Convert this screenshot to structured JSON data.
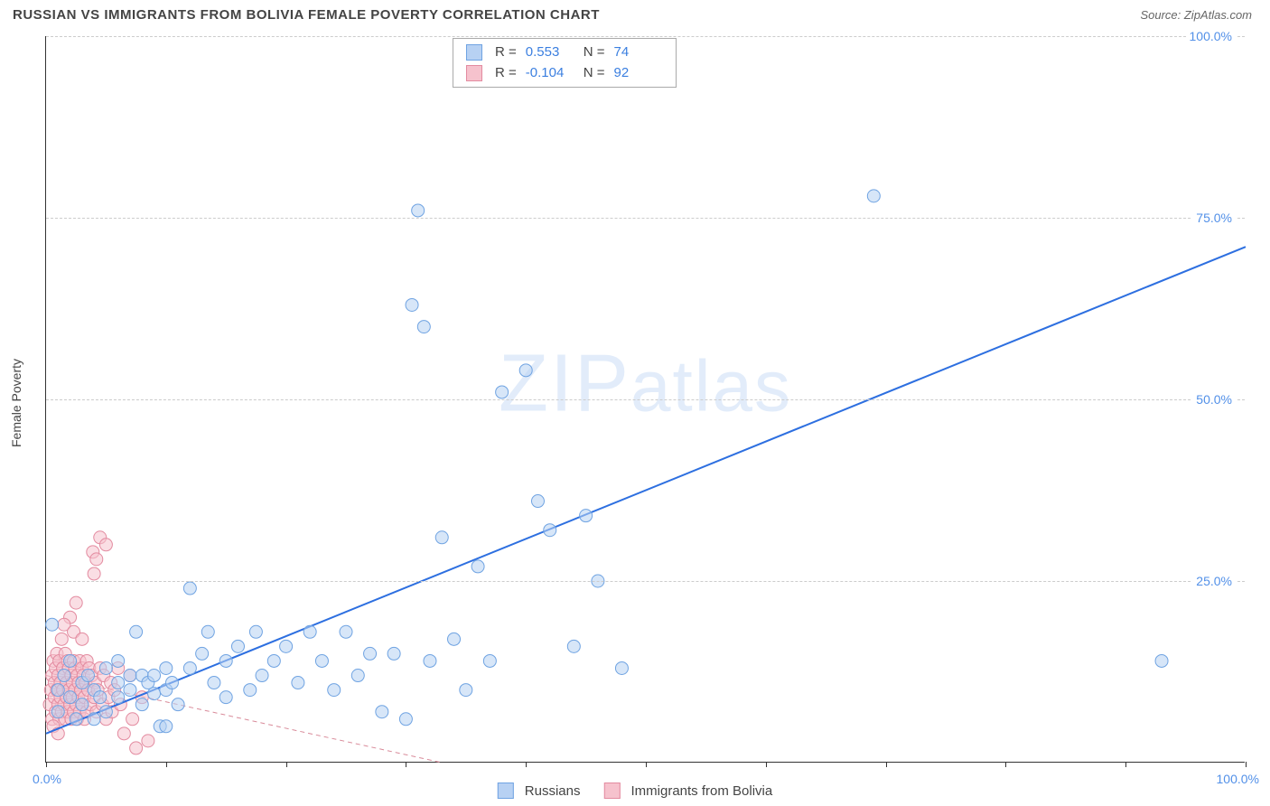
{
  "title": "RUSSIAN VS IMMIGRANTS FROM BOLIVIA FEMALE POVERTY CORRELATION CHART",
  "source": "Source: ZipAtlas.com",
  "watermark": "ZIPatlas",
  "yAxisTitle": "Female Poverty",
  "chart": {
    "type": "scatter",
    "xlim": [
      0,
      100
    ],
    "ylim": [
      0,
      100
    ],
    "xticks": [
      0,
      10,
      20,
      30,
      40,
      50,
      60,
      70,
      80,
      90,
      100
    ],
    "yticks": [
      25,
      50,
      75,
      100
    ],
    "xtick_labels_shown": {
      "0": "0.0%",
      "100": "100.0%"
    },
    "ytick_labels": [
      "25.0%",
      "50.0%",
      "75.0%",
      "100.0%"
    ],
    "grid_color": "#cccccc",
    "axis_color": "#333333",
    "tick_label_color": "#5290e8",
    "background_color": "#ffffff",
    "marker_radius": 7,
    "marker_stroke_width": 1,
    "series": [
      {
        "name": "Russians",
        "fill": "#b7d1f3",
        "stroke": "#6fa3e2",
        "fill_opacity": 0.55,
        "r_value": "0.553",
        "n_value": "74",
        "trend": {
          "x1": 0,
          "y1": 4,
          "x2": 100,
          "y2": 71,
          "stroke": "#2d6fe0",
          "width": 2,
          "dash": "none"
        },
        "points": [
          [
            0.5,
            19
          ],
          [
            1,
            10
          ],
          [
            1,
            7
          ],
          [
            1.5,
            12
          ],
          [
            2,
            9
          ],
          [
            2,
            14
          ],
          [
            2.5,
            6
          ],
          [
            3,
            11
          ],
          [
            3,
            8
          ],
          [
            3.5,
            12
          ],
          [
            4,
            10
          ],
          [
            4.5,
            9
          ],
          [
            5,
            13
          ],
          [
            5,
            7
          ],
          [
            6,
            11
          ],
          [
            6,
            9
          ],
          [
            7,
            12
          ],
          [
            7,
            10
          ],
          [
            7.5,
            18
          ],
          [
            8,
            8
          ],
          [
            8,
            12
          ],
          [
            8.5,
            11
          ],
          [
            9,
            9.5
          ],
          [
            9,
            12
          ],
          [
            9.5,
            5
          ],
          [
            10,
            10
          ],
          [
            10,
            13
          ],
          [
            10.5,
            11
          ],
          [
            11,
            8
          ],
          [
            12,
            24
          ],
          [
            12,
            13
          ],
          [
            13,
            15
          ],
          [
            13.5,
            18
          ],
          [
            14,
            11
          ],
          [
            15,
            14
          ],
          [
            15,
            9
          ],
          [
            16,
            16
          ],
          [
            17,
            10
          ],
          [
            17.5,
            18
          ],
          [
            18,
            12
          ],
          [
            19,
            14
          ],
          [
            20,
            16
          ],
          [
            21,
            11
          ],
          [
            22,
            18
          ],
          [
            23,
            14
          ],
          [
            24,
            10
          ],
          [
            25,
            18
          ],
          [
            26,
            12
          ],
          [
            27,
            15
          ],
          [
            28,
            7
          ],
          [
            29,
            15
          ],
          [
            30,
            6
          ],
          [
            30.5,
            63
          ],
          [
            31,
            76
          ],
          [
            31.5,
            60
          ],
          [
            32,
            14
          ],
          [
            33,
            31
          ],
          [
            34,
            17
          ],
          [
            35,
            10
          ],
          [
            36,
            27
          ],
          [
            37,
            14
          ],
          [
            38,
            51
          ],
          [
            40,
            54
          ],
          [
            41,
            36
          ],
          [
            42,
            32
          ],
          [
            44,
            16
          ],
          [
            45,
            34
          ],
          [
            46,
            25
          ],
          [
            48,
            13
          ],
          [
            69,
            78
          ],
          [
            93,
            14
          ],
          [
            10,
            5
          ],
          [
            6,
            14
          ],
          [
            4,
            6
          ]
        ]
      },
      {
        "name": "Immigrants from Bolivia",
        "fill": "#f6c2cd",
        "stroke": "#e38ba0",
        "fill_opacity": 0.55,
        "r_value": "-0.104",
        "n_value": "92",
        "trend": {
          "x1": 0,
          "y1": 12,
          "x2": 33,
          "y2": 0,
          "stroke": "#d98b9a",
          "width": 1,
          "dash": "5,4"
        },
        "points": [
          [
            0.3,
            8
          ],
          [
            0.4,
            10
          ],
          [
            0.5,
            12
          ],
          [
            0.5,
            6
          ],
          [
            0.6,
            14
          ],
          [
            0.7,
            9
          ],
          [
            0.7,
            11
          ],
          [
            0.8,
            13
          ],
          [
            0.8,
            7
          ],
          [
            0.9,
            10
          ],
          [
            0.9,
            15
          ],
          [
            1.0,
            8
          ],
          [
            1.0,
            12
          ],
          [
            1.1,
            6
          ],
          [
            1.1,
            14
          ],
          [
            1.2,
            9
          ],
          [
            1.2,
            11
          ],
          [
            1.3,
            17
          ],
          [
            1.3,
            7
          ],
          [
            1.4,
            10
          ],
          [
            1.4,
            13
          ],
          [
            1.5,
            8
          ],
          [
            1.5,
            12
          ],
          [
            1.6,
            6
          ],
          [
            1.6,
            15
          ],
          [
            1.7,
            9
          ],
          [
            1.7,
            11
          ],
          [
            1.8,
            14
          ],
          [
            1.8,
            7
          ],
          [
            1.9,
            10
          ],
          [
            1.9,
            13
          ],
          [
            2.0,
            8
          ],
          [
            2.0,
            20
          ],
          [
            2.1,
            12
          ],
          [
            2.1,
            6
          ],
          [
            2.2,
            9
          ],
          [
            2.2,
            11
          ],
          [
            2.3,
            14
          ],
          [
            2.3,
            7
          ],
          [
            2.4,
            10
          ],
          [
            2.4,
            13
          ],
          [
            2.5,
            8
          ],
          [
            2.5,
            22
          ],
          [
            2.6,
            12
          ],
          [
            2.6,
            6
          ],
          [
            2.7,
            9
          ],
          [
            2.7,
            11
          ],
          [
            2.8,
            14
          ],
          [
            2.8,
            7
          ],
          [
            2.9,
            10
          ],
          [
            3.0,
            13
          ],
          [
            3.0,
            8
          ],
          [
            3.1,
            12
          ],
          [
            3.2,
            6
          ],
          [
            3.2,
            9
          ],
          [
            3.3,
            11
          ],
          [
            3.4,
            14
          ],
          [
            3.4,
            7
          ],
          [
            3.5,
            10
          ],
          [
            3.6,
            13
          ],
          [
            3.7,
            8
          ],
          [
            3.8,
            12
          ],
          [
            3.9,
            29
          ],
          [
            4.0,
            26
          ],
          [
            4.0,
            9
          ],
          [
            4.1,
            11
          ],
          [
            4.2,
            7
          ],
          [
            4.3,
            10
          ],
          [
            4.5,
            31
          ],
          [
            4.5,
            13
          ],
          [
            4.7,
            8
          ],
          [
            4.8,
            12
          ],
          [
            5.0,
            30
          ],
          [
            5.0,
            6
          ],
          [
            5.2,
            9
          ],
          [
            5.4,
            11
          ],
          [
            5.5,
            7
          ],
          [
            5.7,
            10
          ],
          [
            6.0,
            13
          ],
          [
            6.2,
            8
          ],
          [
            6.5,
            4
          ],
          [
            7.0,
            12
          ],
          [
            7.2,
            6
          ],
          [
            7.5,
            2
          ],
          [
            8.0,
            9
          ],
          [
            8.5,
            3
          ],
          [
            1.5,
            19
          ],
          [
            2.3,
            18
          ],
          [
            3.0,
            17
          ],
          [
            0.6,
            5
          ],
          [
            1.0,
            4
          ],
          [
            4.2,
            28
          ]
        ]
      }
    ]
  },
  "statsBox": {
    "R_label": "R =",
    "N_label": "N ="
  },
  "bottomLegend": {
    "items": [
      "Russians",
      "Immigrants from Bolivia"
    ]
  }
}
